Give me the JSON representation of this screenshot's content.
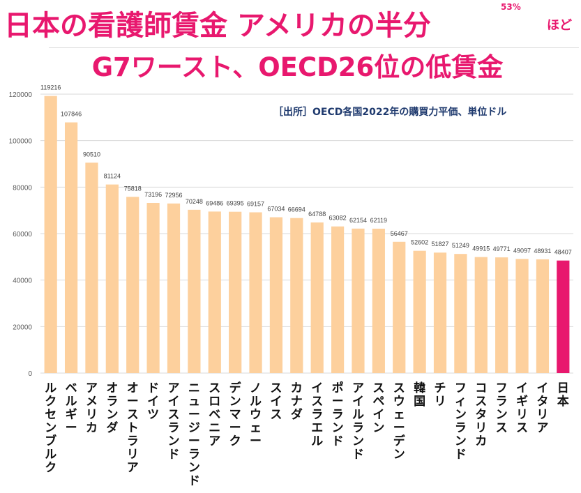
{
  "title": {
    "main": "日本の看護師賃金 アメリカの半分",
    "percent": "53%",
    "suffix": "ほど",
    "line2": "G7ワースト、OECD26位の低賃金"
  },
  "source_note": "［出所］OECD各国2022年の購買力平価、単位ドル",
  "colors": {
    "bar": "#fdd09d",
    "highlight": "#e8186e",
    "title": "#e8186e",
    "note": "#1f3a6e"
  },
  "chart_data": {
    "type": "bar",
    "categories": [
      "ルクセンブルク",
      "ベルギー",
      "アメリカ",
      "オランダ",
      "オーストラリア",
      "ドイツ",
      "アイスランド",
      "ニュージーランド",
      "スロベニア",
      "デンマーク",
      "ノルウェー",
      "スイス",
      "カナダ",
      "イスラエル",
      "ポーランド",
      "アイルランド",
      "スペイン",
      "スウェーデン",
      "韓国",
      "チリ",
      "フィンランド",
      "コスタリカ",
      "フランス",
      "イギリス",
      "イタリア",
      "日本"
    ],
    "values": [
      119216,
      107846,
      90510,
      81124,
      75818,
      73196,
      72956,
      70248,
      69486,
      69395,
      69157,
      67034,
      66694,
      64788,
      63082,
      62154,
      62119,
      56467,
      52602,
      51827,
      51249,
      49915,
      49771,
      49097,
      48931,
      48407
    ],
    "highlight_index": 25,
    "ylim": [
      0,
      120000
    ],
    "yticks": [
      "0",
      "20000",
      "40000",
      "60000",
      "80000",
      "100000",
      "120000"
    ],
    "grid": true,
    "title": "",
    "xlabel": "",
    "ylabel": ""
  }
}
